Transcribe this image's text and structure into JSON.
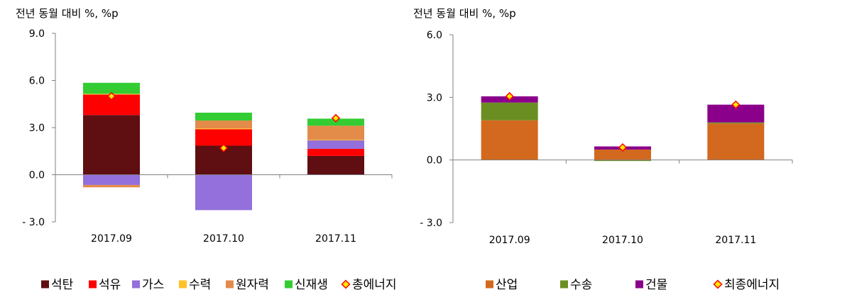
{
  "chart_data": [
    {
      "type": "bar",
      "stacked": true,
      "unit_label": "전년 동월 대비 %, %p",
      "categories": [
        "2017.09",
        "2017.10",
        "2017.11"
      ],
      "ylim": [
        -3.0,
        9.0
      ],
      "yticks": [
        "9.0",
        "6.0",
        "3.0",
        "0.0",
        "- 3.0"
      ],
      "ytick_values": [
        9,
        6,
        3,
        0,
        -3
      ],
      "grid": false,
      "legend_position": "bottom",
      "series": [
        {
          "name": "석탄",
          "color": "#5F0E12",
          "values": [
            3.8,
            1.85,
            1.2
          ]
        },
        {
          "name": "석유",
          "color": "#FF0000",
          "values": [
            1.3,
            1.05,
            0.45
          ]
        },
        {
          "name": "가스",
          "color": "#9370DB",
          "values": [
            -0.65,
            -2.25,
            0.55
          ]
        },
        {
          "name": "수력",
          "color": "#FFC125",
          "values": [
            0.05,
            0.05,
            0.02
          ]
        },
        {
          "name": "원자력",
          "color": "#E38C4A",
          "values": [
            -0.15,
            0.5,
            0.9
          ]
        },
        {
          "name": "신재생",
          "color": "#33CC33",
          "values": [
            0.7,
            0.5,
            0.45
          ]
        }
      ],
      "line_series": {
        "name": "총에너지",
        "marker_color": "#FFE600",
        "marker_edge": "#FF0000",
        "values": [
          5.0,
          1.7,
          3.6
        ]
      }
    },
    {
      "type": "bar",
      "stacked": true,
      "unit_label": "전년 동월 대비 %, %p",
      "categories": [
        "2017.09",
        "2017.10",
        "2017.11"
      ],
      "ylim": [
        -3.0,
        6.0
      ],
      "yticks": [
        "6.0",
        "3.0",
        "0.0",
        "- 3.0"
      ],
      "ytick_values": [
        6,
        3,
        0,
        -3
      ],
      "grid": false,
      "legend_position": "bottom",
      "series": [
        {
          "name": "산업",
          "color": "#D2691E",
          "values": [
            1.9,
            0.5,
            1.75
          ]
        },
        {
          "name": "수송",
          "color": "#6B8E23",
          "values": [
            0.85,
            -0.05,
            0.05
          ]
        },
        {
          "name": "건물",
          "color": "#8B008B",
          "values": [
            0.3,
            0.15,
            0.85
          ]
        }
      ],
      "line_series": {
        "name": "최종에너지",
        "marker_color": "#FFE600",
        "marker_edge": "#FF0000",
        "values": [
          3.05,
          0.6,
          2.65
        ]
      }
    }
  ]
}
